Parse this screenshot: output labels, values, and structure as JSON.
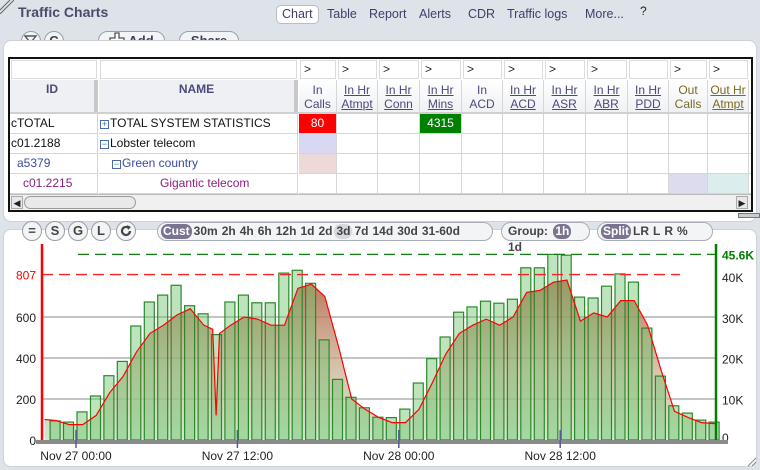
{
  "header": {
    "title": "Traffic Charts",
    "tabs": [
      {
        "label": "Chart",
        "selected": true
      },
      {
        "label": "Table"
      },
      {
        "label": "Report"
      },
      {
        "label": "Alerts"
      },
      {
        "label": "CDR"
      },
      {
        "label": "Traffic logs"
      },
      {
        "label": "More..."
      }
    ],
    "icons": [
      "help-icon",
      "pencil-icon",
      "chevron-down-icon",
      "maximize-icon",
      "close-icon"
    ]
  },
  "toolbar": {
    "clear_filter_icon": "filter-clear-icon",
    "c_label": "C",
    "add_label": "Add",
    "share_label": "Share"
  },
  "table": {
    "columns": [
      {
        "label": "ID",
        "filter": ""
      },
      {
        "label": "NAME",
        "filter": ""
      },
      {
        "label": "In Calls",
        "filter": ">",
        "underline": false
      },
      {
        "label": "In Hr Atmpt",
        "filter": ">",
        "underline": true
      },
      {
        "label": "In Hr Conn",
        "filter": ">",
        "underline": true
      },
      {
        "label": "In Hr Mins",
        "filter": ">",
        "underline": true
      },
      {
        "label": "In ACD",
        "filter": ">",
        "underline": false
      },
      {
        "label": "In Hr ACD",
        "filter": ">",
        "underline": true
      },
      {
        "label": "In Hr ASR",
        "filter": ">",
        "underline": true
      },
      {
        "label": "In Hr ABR",
        "filter": ">",
        "underline": true
      },
      {
        "label": "In Hr PDD",
        "filter": "",
        "underline": true
      },
      {
        "label": "Out Calls",
        "filter": ">",
        "underline": false,
        "out": true
      },
      {
        "label": "Out Hr Atmpt",
        "filter": ">",
        "underline": true,
        "out": true
      }
    ],
    "rows": [
      {
        "id": "cTOTAL",
        "name": "TOTAL SYSTEM STATISTICS",
        "tree": "plus",
        "level": 0,
        "color": "#111111",
        "cells": {
          "2": {
            "value": "80",
            "bg": "#ff0000",
            "fg": "#ffffff"
          },
          "5": {
            "value": "4315",
            "bg": "#008000",
            "fg": "#ffffff"
          }
        }
      },
      {
        "id": "c01.2188",
        "name": "Lobster telecom",
        "tree": "minus",
        "level": 0,
        "color": "#111111",
        "cells": {
          "2": {
            "value": "",
            "bg": "#d8d8f2"
          }
        }
      },
      {
        "id": "a5379",
        "name": "Green country",
        "tree": "minus",
        "level": 1,
        "color": "#3a4aa0",
        "cells": {
          "2": {
            "value": "",
            "bg": "#eed9d9"
          }
        }
      },
      {
        "id": "c01.2215",
        "name": "Gigantic telecom",
        "tree": "none",
        "level": 2,
        "color": "#8a2080",
        "cells": {
          "11": {
            "value": "",
            "bg": "#dcdcee"
          },
          "12": {
            "value": "",
            "bg": "#dcedee"
          }
        }
      }
    ]
  },
  "chart_toolbar": {
    "buttons": [
      "=",
      "S",
      "G",
      "L"
    ],
    "refresh_icon": "refresh-icon",
    "ranges": [
      {
        "label": "Cust",
        "selected": true
      },
      {
        "label": "30m"
      },
      {
        "label": "2h"
      },
      {
        "label": "4h"
      },
      {
        "label": "6h"
      },
      {
        "label": "12h"
      },
      {
        "label": "1d"
      },
      {
        "label": "2d"
      },
      {
        "label": "3d",
        "highlight": true
      },
      {
        "label": "7d"
      },
      {
        "label": "14d"
      },
      {
        "label": "30d"
      },
      {
        "label": "31-60d"
      }
    ],
    "group_label": "Group:",
    "groups": [
      {
        "label": "1h",
        "selected": true
      },
      {
        "label": "1d"
      }
    ],
    "modes": [
      {
        "label": "Split",
        "selected": true
      },
      {
        "label": "LR"
      },
      {
        "label": "L"
      },
      {
        "label": "R"
      },
      {
        "label": "%"
      }
    ]
  },
  "chart_data": {
    "type": "bar+line",
    "x_ticks": [
      "Nov 27 00:00",
      "Nov 27 12:00",
      "Nov 28 00:00",
      "Nov 28 12:00"
    ],
    "categories": [
      "Nov 26 22:00",
      "Nov 26 23:00",
      "Nov 27 00:00",
      "Nov 27 01:00",
      "Nov 27 02:00",
      "Nov 27 03:00",
      "Nov 27 04:00",
      "Nov 27 05:00",
      "Nov 27 06:00",
      "Nov 27 07:00",
      "Nov 27 08:00",
      "Nov 27 09:00",
      "Nov 27 10:00",
      "Nov 27 11:00",
      "Nov 27 12:00",
      "Nov 27 13:00",
      "Nov 27 14:00",
      "Nov 27 15:00",
      "Nov 27 16:00",
      "Nov 27 17:00",
      "Nov 27 18:00",
      "Nov 27 19:00",
      "Nov 27 20:00",
      "Nov 27 21:00",
      "Nov 27 22:00",
      "Nov 27 23:00",
      "Nov 28 00:00",
      "Nov 28 01:00",
      "Nov 28 02:00",
      "Nov 28 03:00",
      "Nov 28 04:00",
      "Nov 28 05:00",
      "Nov 28 06:00",
      "Nov 28 07:00",
      "Nov 28 08:00",
      "Nov 28 09:00",
      "Nov 28 10:00",
      "Nov 28 11:00",
      "Nov 28 12:00",
      "Nov 28 13:00",
      "Nov 28 14:00",
      "Nov 28 15:00",
      "Nov 28 16:00",
      "Nov 28 17:00",
      "Nov 28 18:00",
      "Nov 28 19:00",
      "Nov 28 20:00",
      "Nov 28 21:00",
      "Nov 28 22:00",
      "Nov 28 23:00"
    ],
    "bars": {
      "axis": "right",
      "color": "#2a8a2a",
      "values": [
        4700,
        4400,
        6900,
        10800,
        15800,
        19300,
        28000,
        33900,
        35600,
        38000,
        33000,
        31000,
        25900,
        33900,
        35600,
        33700,
        33700,
        41000,
        41700,
        38500,
        24600,
        14900,
        10500,
        7900,
        5600,
        5500,
        7600,
        14000,
        20000,
        25300,
        31400,
        32700,
        34100,
        33600,
        34600,
        42300,
        42300,
        45600,
        45400,
        35100,
        34900,
        37800,
        40800,
        38800,
        27500,
        15700,
        8400,
        6600,
        4900,
        4400
      ]
    },
    "line": {
      "axis": "left",
      "color": "#ff0000",
      "points": [
        [
          "Nov 26 21:40",
          100
        ],
        [
          "Nov 26 22:30",
          95
        ],
        [
          "Nov 26 23:30",
          75
        ],
        [
          "Nov 27 00:30",
          75
        ],
        [
          "Nov 27 01:30",
          120
        ],
        [
          "Nov 27 02:30",
          230
        ],
        [
          "Nov 27 03:30",
          310
        ],
        [
          "Nov 27 04:30",
          430
        ],
        [
          "Nov 27 05:30",
          520
        ],
        [
          "Nov 27 06:30",
          560
        ],
        [
          "Nov 27 07:30",
          610
        ],
        [
          "Nov 27 08:30",
          640
        ],
        [
          "Nov 27 09:30",
          560
        ],
        [
          "Nov 27 10:10",
          540
        ],
        [
          "Nov 27 10:25",
          120
        ],
        [
          "Nov 27 10:40",
          520
        ],
        [
          "Nov 27 11:30",
          560
        ],
        [
          "Nov 27 12:30",
          600
        ],
        [
          "Nov 27 13:30",
          590
        ],
        [
          "Nov 27 14:30",
          560
        ],
        [
          "Nov 27 15:30",
          560
        ],
        [
          "Nov 27 16:30",
          740
        ],
        [
          "Nov 27 17:30",
          760
        ],
        [
          "Nov 27 18:30",
          700
        ],
        [
          "Nov 27 19:30",
          460
        ],
        [
          "Nov 27 20:30",
          200
        ],
        [
          "Nov 27 21:30",
          150
        ],
        [
          "Nov 27 22:30",
          110
        ],
        [
          "Nov 27 23:30",
          85
        ],
        [
          "Nov 28 00:30",
          85
        ],
        [
          "Nov 28 01:30",
          150
        ],
        [
          "Nov 28 02:30",
          280
        ],
        [
          "Nov 28 03:30",
          420
        ],
        [
          "Nov 28 04:30",
          520
        ],
        [
          "Nov 28 05:30",
          560
        ],
        [
          "Nov 28 06:30",
          590
        ],
        [
          "Nov 28 07:30",
          560
        ],
        [
          "Nov 28 08:30",
          600
        ],
        [
          "Nov 28 09:30",
          720
        ],
        [
          "Nov 28 10:30",
          730
        ],
        [
          "Nov 28 11:30",
          770
        ],
        [
          "Nov 28 12:30",
          780
        ],
        [
          "Nov 28 13:30",
          580
        ],
        [
          "Nov 28 14:30",
          620
        ],
        [
          "Nov 28 15:30",
          600
        ],
        [
          "Nov 28 16:30",
          680
        ],
        [
          "Nov 28 17:30",
          680
        ],
        [
          "Nov 28 18:30",
          560
        ],
        [
          "Nov 28 19:30",
          340
        ],
        [
          "Nov 28 20:30",
          140
        ],
        [
          "Nov 28 21:30",
          110
        ],
        [
          "Nov 28 22:30",
          85
        ],
        [
          "Nov 28 23:30",
          80
        ]
      ]
    },
    "left_axis": {
      "ticks": [
        "0",
        "200",
        "400",
        "600"
      ],
      "tick_values": [
        0,
        200,
        400,
        600
      ],
      "max_label": "807",
      "max_value": 807,
      "color": "#ff0000",
      "range": [
        0,
        807
      ]
    },
    "right_axis": {
      "ticks": [
        "0",
        "10K",
        "20K",
        "30K",
        "40K"
      ],
      "tick_values": [
        0,
        10000,
        20000,
        30000,
        40000
      ],
      "max_label": "45.6K",
      "max_value": 45600,
      "color": "#008000",
      "range": [
        0,
        45600
      ]
    },
    "grid": true
  }
}
